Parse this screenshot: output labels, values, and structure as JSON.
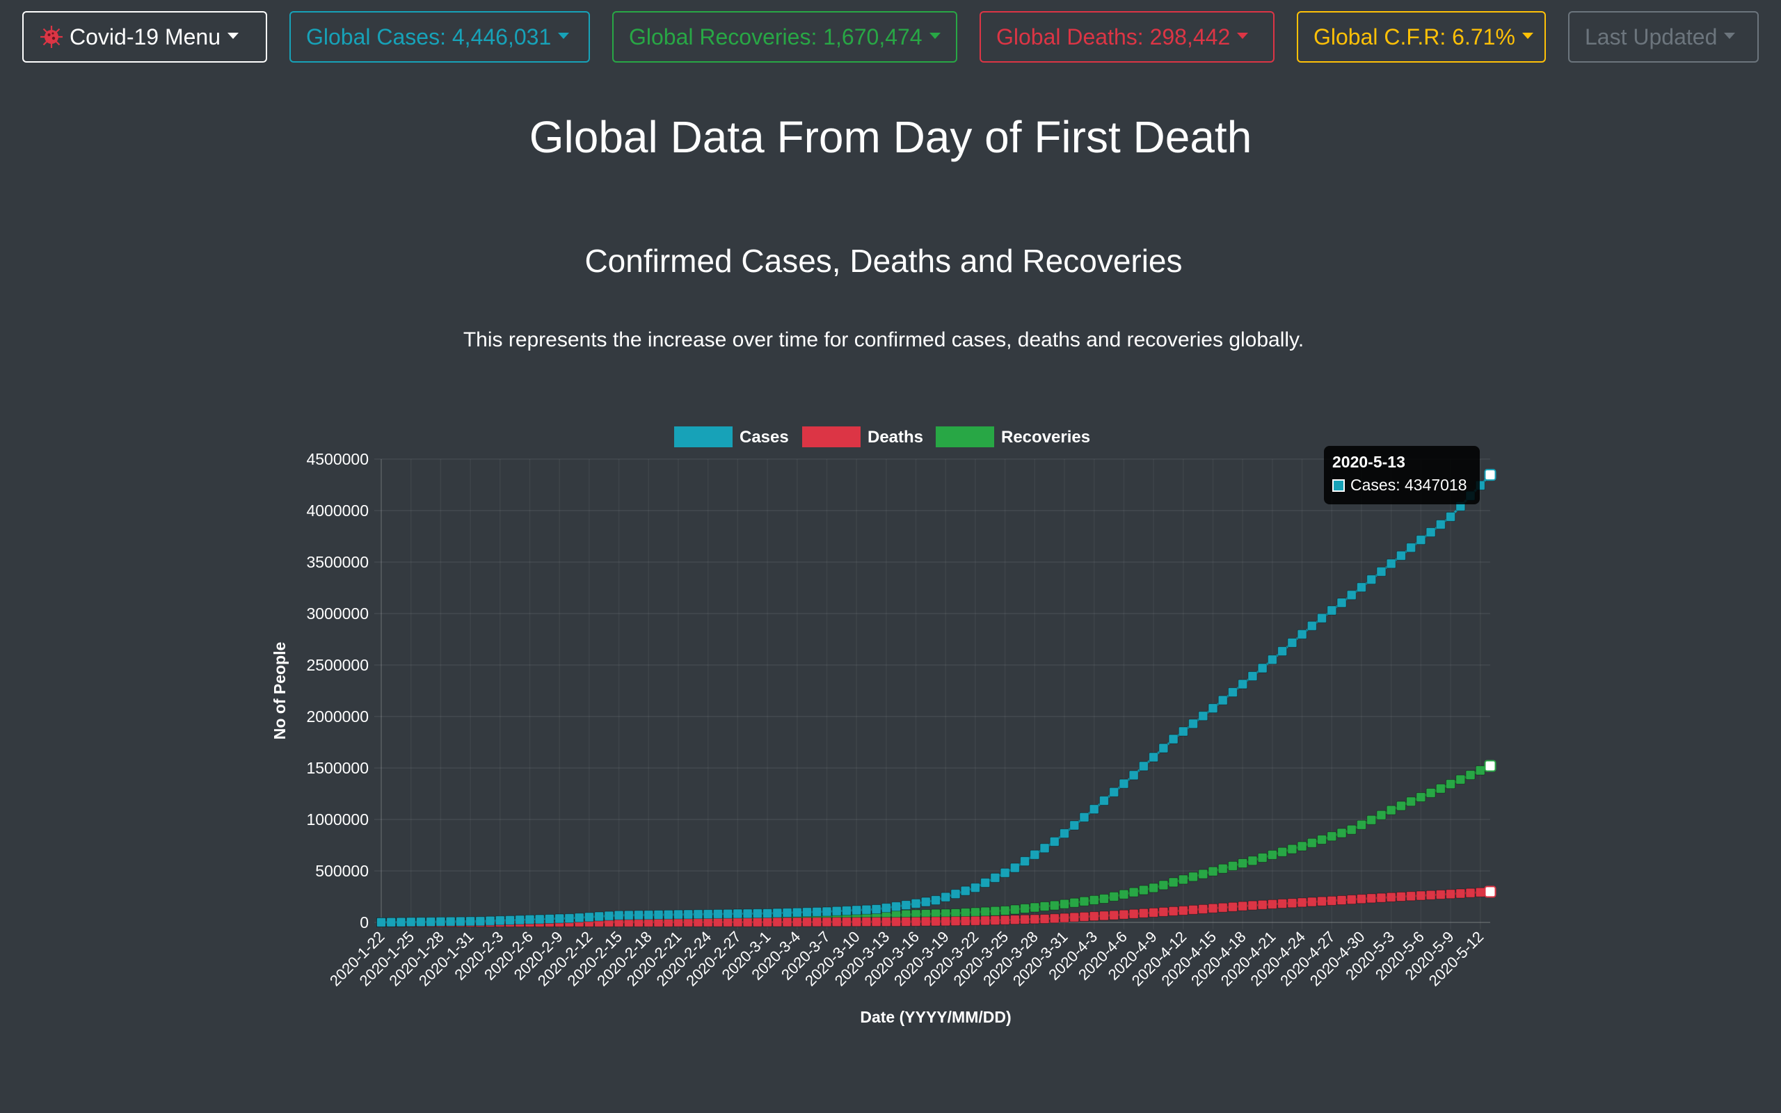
{
  "navbar": {
    "menu_label": "Covid-19 Menu",
    "cases_label": "Global Cases: 4,446,031",
    "recoveries_label": "Global Recoveries: 1,670,474",
    "deaths_label": "Global Deaths: 298,442",
    "cfr_label": "Global C.F.R: 6.71%",
    "updated_label": "Last Updated",
    "colors": {
      "menu": "#ffffff",
      "cases": "#17a2b8",
      "recoveries": "#28a745",
      "deaths": "#dc3545",
      "cfr": "#ffc107",
      "updated": "#6c757d"
    }
  },
  "page": {
    "title": "Global Data From Day of First Death",
    "subtitle": "Confirmed Cases, Deaths and Recoveries",
    "description": "This represents the increase over time for confirmed cases, deaths and recoveries globally."
  },
  "tooltip": {
    "date": "2020-5-13",
    "text": "Cases: 4347018",
    "swatch_color": "#17a2b8"
  },
  "chart_data": {
    "type": "line",
    "xlabel": "Date (YYYY/MM/DD)",
    "ylabel": "No of People",
    "ylim": [
      0,
      4500000
    ],
    "yticks": [
      0,
      500000,
      1000000,
      1500000,
      2000000,
      2500000,
      3000000,
      3500000,
      4000000,
      4500000
    ],
    "x_start": "2020-1-22",
    "x_end": "2020-5-13",
    "x_tick_every": 3,
    "grid": true,
    "legend_position": "top-center",
    "series": [
      {
        "name": "Cases",
        "color": "#17a2b8",
        "anchors": [
          [
            "2020-1-22",
            555
          ],
          [
            "2020-2-1",
            12000
          ],
          [
            "2020-2-10",
            40000
          ],
          [
            "2020-2-15",
            69000
          ],
          [
            "2020-2-23",
            79000
          ],
          [
            "2020-3-1",
            88000
          ],
          [
            "2020-3-7",
            105000
          ],
          [
            "2020-3-12",
            128000
          ],
          [
            "2020-3-15",
            168000
          ],
          [
            "2020-3-18",
            215000
          ],
          [
            "2020-3-22",
            337000
          ],
          [
            "2020-3-26",
            530000
          ],
          [
            "2020-3-30",
            785000
          ],
          [
            "2020-4-3",
            1100000
          ],
          [
            "2020-4-7",
            1430000
          ],
          [
            "2020-4-11",
            1780000
          ],
          [
            "2020-4-15",
            2080000
          ],
          [
            "2020-4-20",
            2470000
          ],
          [
            "2020-4-25",
            2880000
          ],
          [
            "2020-5-1",
            3330000
          ],
          [
            "2020-5-5",
            3640000
          ],
          [
            "2020-5-9",
            3940000
          ],
          [
            "2020-5-13",
            4347018
          ]
        ]
      },
      {
        "name": "Deaths",
        "color": "#dc3545",
        "anchors": [
          [
            "2020-1-22",
            17
          ],
          [
            "2020-2-15",
            1600
          ],
          [
            "2020-3-1",
            3000
          ],
          [
            "2020-3-15",
            6500
          ],
          [
            "2020-3-22",
            15000
          ],
          [
            "2020-3-29",
            34000
          ],
          [
            "2020-4-5",
            70000
          ],
          [
            "2020-4-12",
            115000
          ],
          [
            "2020-4-19",
            165000
          ],
          [
            "2020-4-26",
            205000
          ],
          [
            "2020-5-3",
            245000
          ],
          [
            "2020-5-9",
            275000
          ],
          [
            "2020-5-13",
            298000
          ]
        ]
      },
      {
        "name": "Recoveries",
        "color": "#28a745",
        "anchors": [
          [
            "2020-1-22",
            28
          ],
          [
            "2020-2-10",
            3000
          ],
          [
            "2020-2-20",
            18000
          ],
          [
            "2020-3-1",
            43000
          ],
          [
            "2020-3-10",
            62000
          ],
          [
            "2020-3-15",
            76000
          ],
          [
            "2020-3-20",
            88000
          ],
          [
            "2020-3-25",
            115000
          ],
          [
            "2020-3-30",
            165000
          ],
          [
            "2020-4-4",
            230000
          ],
          [
            "2020-4-9",
            335000
          ],
          [
            "2020-4-14",
            470000
          ],
          [
            "2020-4-19",
            600000
          ],
          [
            "2020-4-24",
            740000
          ],
          [
            "2020-4-29",
            900000
          ],
          [
            "2020-5-3",
            1090000
          ],
          [
            "2020-5-8",
            1300000
          ],
          [
            "2020-5-13",
            1520000
          ]
        ]
      }
    ]
  }
}
